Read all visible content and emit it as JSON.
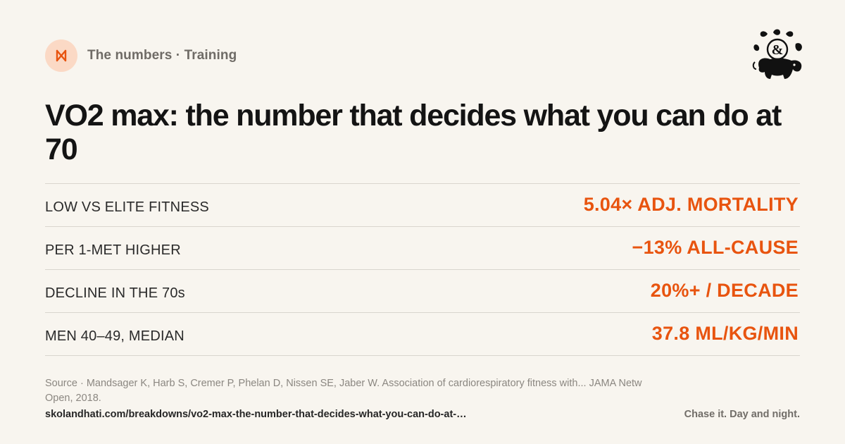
{
  "header": {
    "brand_icon": "bowtie-logo-icon",
    "section_label": "The numbers · Training"
  },
  "mascot": {
    "icon": "lion-ampersand-mascot-icon",
    "glyph": "&"
  },
  "title": "VO2 max: the number that decides what you can do at 70",
  "stats": [
    {
      "label": "LOW VS ELITE FITNESS",
      "value": "5.04× ADJ. MORTALITY"
    },
    {
      "label": "PER 1-MET HIGHER",
      "value": "−13% ALL-CAUSE"
    },
    {
      "label": "DECLINE IN THE 70s",
      "value": "20%+ / DECADE"
    },
    {
      "label": "MEN 40–49, MEDIAN",
      "value": "37.8 ML/KG/MIN"
    }
  ],
  "footer": {
    "source": "Source · Mandsager K, Harb S, Cremer P, Phelan D, Nissen SE, Jaber W. Association of cardiorespiratory fitness with... JAMA Netw Open, 2018.",
    "url": "skolandhati.com/breakdowns/vo2-max-the-number-that-decides-what-you-can-do-at-…",
    "tagline": "Chase it. Day and night."
  },
  "colors": {
    "background": "#f8f5ef",
    "accent": "#e8540f",
    "badge": "#fbd9c5",
    "text": "#161616",
    "muted": "#8b8781"
  }
}
